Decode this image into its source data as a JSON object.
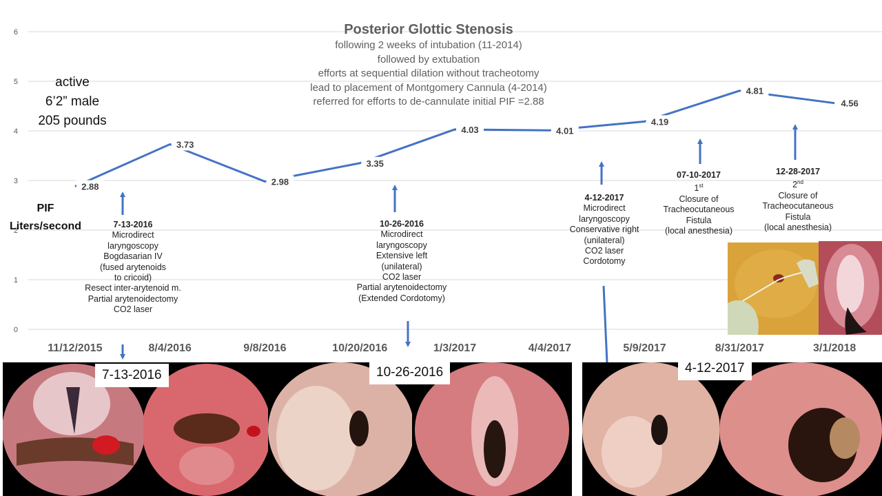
{
  "chart_data": {
    "type": "line",
    "title": "Posterior Glottic Stenosis",
    "subtitle_lines": [
      "following 2 weeks of intubation (11-2014)",
      "followed by extubation",
      "efforts at sequential dilation without tracheotomy",
      "lead to placement of Montgomery Cannula (4-2014)",
      "referred for efforts to de-cannulate initial PIF =2.88"
    ],
    "ylabel_lines": [
      "PIF",
      "Liters/second"
    ],
    "ylim": [
      0,
      6
    ],
    "yticks": [
      "0",
      "1",
      "2",
      "3",
      "4",
      "5",
      "6"
    ],
    "categories": [
      "11/12/2015",
      "8/4/2016",
      "9/8/2016",
      "10/20/2016",
      "1/3/2017",
      "4/4/2017",
      "5/9/2017",
      "8/31/2017",
      "3/1/2018"
    ],
    "x_positions": [
      0.5,
      1.5,
      2.5,
      3.5,
      4.5,
      5.5,
      6.5,
      7.5,
      8.5
    ],
    "series": [
      {
        "x": [
          0.5,
          1.5,
          2.5,
          3.5,
          4.5,
          5.5,
          6.5,
          7.5,
          8.5
        ],
        "values": [
          2.88,
          3.73,
          2.98,
          3.35,
          4.03,
          4.01,
          4.19,
          4.81,
          4.56
        ],
        "labels": [
          "2.88",
          "3.73",
          "2.98",
          "3.35",
          "4.03",
          "4.01",
          "4.19",
          "4.81",
          "4.56"
        ],
        "color": "#4472c4"
      }
    ],
    "grid": true,
    "legend": "none"
  },
  "patient_lines": [
    "active",
    "6’2” male",
    "205 pounds"
  ],
  "annotations": [
    {
      "date": "7-13-2016",
      "lines": [
        "Microdirect",
        "laryngoscopy",
        "Bogdasarian IV",
        "(fused arytenoids",
        "to cricoid)",
        "Resect inter-arytenoid m.",
        "Partial arytenoidectomy",
        "CO2 laser"
      ]
    },
    {
      "date": "10-26-2016",
      "lines": [
        "Microdirect",
        "laryngoscopy",
        "Extensive left",
        "(unilateral)",
        "CO2 laser",
        "Partial arytenoidectomy",
        "(Extended Cordotomy)"
      ]
    },
    {
      "date": "4-12-2017",
      "lines": [
        "Microdirect",
        "laryngoscopy",
        "Conservative right",
        "(unilateral)",
        "CO2 laser",
        "Cordotomy"
      ]
    },
    {
      "date": "07-10-2017",
      "ordinal": "1",
      "ordinal_suffix": "st",
      "lines": [
        "Closure of",
        "Tracheocutaneous",
        "Fistula",
        "(local anesthesia)"
      ]
    },
    {
      "date": "12-28-2017",
      "ordinal": "2",
      "ordinal_suffix": "nd",
      "lines": [
        "Closure of",
        "Tracheocutaneous",
        "Fistula",
        "(local anesthesia)"
      ]
    }
  ],
  "photo_labels": [
    "7-13-2016",
    "10-26-2016",
    "4-12-2017"
  ],
  "colors": {
    "line": "#4472c4",
    "arrow": "#4472c4",
    "grid": "#d9d9d9",
    "axis_text": "#595959",
    "value_text": "#404040"
  }
}
